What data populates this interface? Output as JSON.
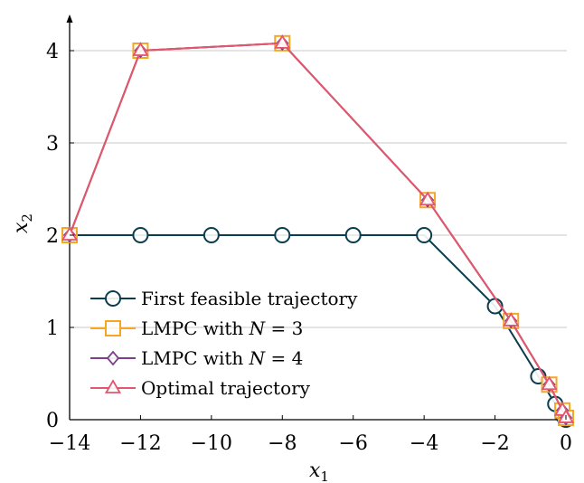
{
  "chart_data": {
    "type": "line",
    "xlabel": "x",
    "xlabel_sub": "1",
    "ylabel": "x",
    "ylabel_sub": "2",
    "xlim": [
      -14,
      0.15
    ],
    "ylim": [
      0,
      4.4
    ],
    "xticks": [
      -14,
      -12,
      -10,
      -8,
      -6,
      -4,
      -2,
      0
    ],
    "xtick_labels": [
      "−14",
      "−12",
      "−10",
      "−8",
      "−6",
      "−4",
      "−2",
      "0"
    ],
    "yticks": [
      0,
      1,
      2,
      3,
      4
    ],
    "ytick_labels": [
      "0",
      "1",
      "2",
      "3",
      "4"
    ],
    "grid": "horizontal",
    "legend_position": "lower-left",
    "series": [
      {
        "name": "First feasible trajectory",
        "color": "#0c3d4e",
        "marker": "circle",
        "points": [
          [
            -14,
            2
          ],
          [
            -12,
            2
          ],
          [
            -10,
            2
          ],
          [
            -8,
            2
          ],
          [
            -6,
            2
          ],
          [
            -4,
            2
          ],
          [
            -2,
            1.23
          ],
          [
            -0.78,
            0.47
          ],
          [
            -0.3,
            0.17
          ],
          [
            -0.1,
            0.05
          ],
          [
            0,
            0
          ]
        ]
      },
      {
        "name": "LMPC with N = 3",
        "color": "#f5a623",
        "marker": "square",
        "points": [
          [
            -14,
            2
          ],
          [
            -12,
            4
          ],
          [
            -8,
            4.08
          ],
          [
            -3.9,
            2.38
          ],
          [
            -1.55,
            1.07
          ],
          [
            -0.47,
            0.38
          ],
          [
            -0.1,
            0.1
          ],
          [
            0,
            0.02
          ]
        ]
      },
      {
        "name": "LMPC with N = 4",
        "color": "#7b3f8c",
        "marker": "diamond",
        "points": [
          [
            -14,
            2
          ],
          [
            -12,
            4
          ],
          [
            -8,
            4.08
          ],
          [
            -3.9,
            2.38
          ],
          [
            -1.55,
            1.07
          ],
          [
            -0.47,
            0.38
          ],
          [
            -0.1,
            0.1
          ],
          [
            0,
            0.02
          ]
        ]
      },
      {
        "name": "Optimal trajectory",
        "color": "#e0576f",
        "marker": "triangle",
        "points": [
          [
            -14,
            2
          ],
          [
            -12,
            4
          ],
          [
            -8,
            4.08
          ],
          [
            -3.9,
            2.38
          ],
          [
            -1.55,
            1.07
          ],
          [
            -0.47,
            0.38
          ],
          [
            -0.1,
            0.1
          ],
          [
            0,
            0.02
          ]
        ]
      }
    ],
    "legend": [
      {
        "prefix": "First feasible trajectory",
        "math": "",
        "suffix": ""
      },
      {
        "prefix": "LMPC with ",
        "math": "N",
        "suffix": " = 3"
      },
      {
        "prefix": "LMPC with ",
        "math": "N",
        "suffix": " = 4"
      },
      {
        "prefix": "Optimal trajectory",
        "math": "",
        "suffix": ""
      }
    ]
  }
}
